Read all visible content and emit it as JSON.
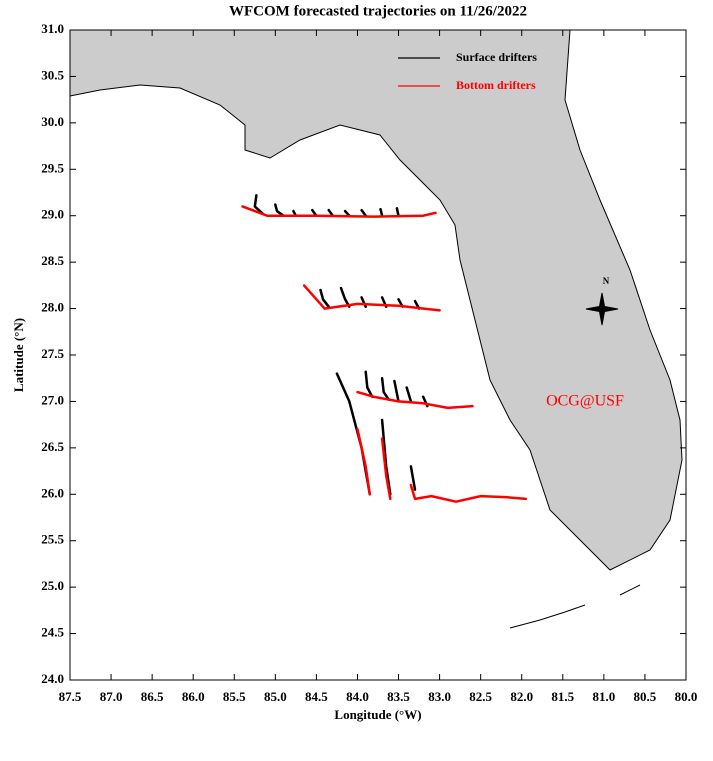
{
  "chart_data": {
    "type": "line",
    "title": "WFCOM forecasted trajectories on 11/26/2022",
    "x_label": "Longitude (°W)",
    "y_label": "Latitude (°N)",
    "annotation": "OCG@USF",
    "compass_label": "N",
    "legend": "top-right",
    "xlim": [
      87.5,
      80.0
    ],
    "ylim": [
      24.0,
      31.0
    ],
    "xticks": [
      87.5,
      {
        "value": 87,
        "label": "87.0"
      },
      86.5,
      {
        "value": 86,
        "label": "86.0"
      },
      85.5,
      {
        "value": 85,
        "label": "85.0"
      },
      84.5,
      {
        "value": 84,
        "label": "84.0"
      },
      83.5,
      {
        "value": 83,
        "label": "83.0"
      },
      82.5,
      {
        "value": 82,
        "label": "82.0"
      },
      81.5,
      {
        "value": 81,
        "label": "81.0"
      },
      80.5,
      {
        "value": 80,
        "label": "80.0"
      }
    ],
    "yticks": [
      {
        "value": 24,
        "label": "24.0"
      },
      24.5,
      {
        "value": 25,
        "label": "25.0"
      },
      25.5,
      {
        "value": 26,
        "label": "26.0"
      },
      26.5,
      {
        "value": 27,
        "label": "27.0"
      },
      27.5,
      {
        "value": 28,
        "label": "28.0"
      },
      28.5,
      {
        "value": 29,
        "label": "29.0"
      },
      29.5,
      {
        "value": 30,
        "label": "30.0"
      },
      30.5,
      {
        "value": 31,
        "label": "31.0"
      }
    ],
    "series": [
      {
        "name": "Surface drifters",
        "color": "#000000",
        "x": [
          85.23,
          85.25,
          85.15,
          null,
          85.0,
          84.98,
          84.9,
          null,
          84.78,
          84.75,
          null,
          84.55,
          84.5,
          null,
          84.35,
          84.3,
          null,
          84.15,
          84.1,
          null,
          83.95,
          83.9,
          null,
          83.72,
          83.7,
          null,
          83.52,
          83.5,
          null,
          84.45,
          84.42,
          84.35,
          null,
          84.2,
          84.15,
          84.1,
          null,
          83.95,
          83.9,
          null,
          83.7,
          83.65,
          null,
          83.5,
          83.45,
          null,
          83.3,
          83.25,
          null,
          83.9,
          83.88,
          83.82,
          null,
          83.7,
          83.68,
          83.62,
          null,
          83.55,
          83.5,
          null,
          83.4,
          83.35,
          null,
          83.2,
          83.15,
          null,
          84.25,
          84.1,
          83.95,
          83.85,
          null,
          83.7,
          83.65,
          83.6,
          null,
          83.35,
          83.3
        ],
        "values": [
          29.22,
          29.1,
          29.02,
          null,
          29.12,
          29.05,
          29.0,
          null,
          29.05,
          29.0,
          null,
          29.06,
          29.0,
          null,
          29.06,
          29.0,
          null,
          29.05,
          29.0,
          null,
          29.06,
          29.0,
          null,
          29.07,
          29.0,
          null,
          29.08,
          29.0,
          null,
          28.2,
          28.1,
          28.02,
          null,
          28.22,
          28.1,
          28.02,
          null,
          28.12,
          28.02,
          null,
          28.12,
          28.02,
          null,
          28.1,
          28.02,
          null,
          28.08,
          28.0,
          null,
          27.32,
          27.15,
          27.05,
          null,
          27.25,
          27.1,
          27.02,
          null,
          27.22,
          27.0,
          null,
          27.15,
          27.0,
          null,
          27.05,
          26.95,
          null,
          27.3,
          27.0,
          26.5,
          26.0,
          null,
          26.8,
          26.3,
          26.0,
          null,
          26.3,
          26.05
        ]
      },
      {
        "name": "Bottom drifters",
        "color": "#ff0000",
        "x": [
          85.4,
          85.1,
          84.5,
          83.8,
          83.2,
          83.05,
          null,
          84.65,
          84.5,
          84.4,
          84.0,
          83.5,
          83.0,
          null,
          84.0,
          83.8,
          83.5,
          83.2,
          82.9,
          82.6,
          null,
          84.0,
          83.9,
          83.85,
          null,
          83.7,
          83.65,
          83.6,
          null,
          83.35,
          83.3,
          83.1,
          82.8,
          82.5,
          82.2,
          81.95
        ],
        "values": [
          29.1,
          29.0,
          29.0,
          28.99,
          29.0,
          29.03,
          null,
          28.25,
          28.1,
          28.0,
          28.05,
          28.03,
          27.98,
          null,
          27.1,
          27.05,
          27.0,
          26.98,
          26.93,
          26.95,
          null,
          26.7,
          26.3,
          26.0,
          null,
          26.6,
          26.2,
          25.95,
          null,
          26.1,
          25.95,
          25.98,
          25.92,
          25.98,
          25.97,
          25.95
        ]
      }
    ]
  }
}
